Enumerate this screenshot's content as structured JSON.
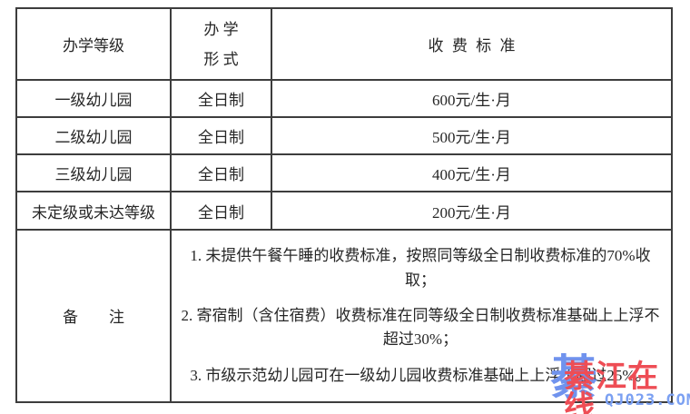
{
  "table": {
    "headers": {
      "grade": "办学等级",
      "form_line1": "办 学",
      "form_line2": "形 式",
      "fee": "收费标准"
    },
    "rows": [
      {
        "grade": "一级幼儿园",
        "form": "全日制",
        "fee": "600元/生·月"
      },
      {
        "grade": "二级幼儿园",
        "form": "全日制",
        "fee": "500元/生·月"
      },
      {
        "grade": "三级幼儿园",
        "form": "全日制",
        "fee": "400元/生·月"
      },
      {
        "grade": "未定级或未达等级",
        "form": "全日制",
        "fee": "200元/生·月"
      }
    ],
    "remarks": {
      "label": "备　　注",
      "notes": [
        "1. 未提供午餐午睡的收费标准，按照同等级全日制收费标准的70%收取；",
        "2. 寄宿制（含住宿费）收费标准在同等级全日制收费标准基础上上浮不超过30%；",
        "3. 市级示范幼儿园可在一级幼儿园收费标准基础上上浮不超过25%。"
      ]
    }
  },
  "watermark": {
    "big_char": "綦",
    "site_name": "綦江在线",
    "site_url": "QJ023.COM",
    "red_color": "#ee4d55",
    "blue_color": "#7093ee"
  }
}
